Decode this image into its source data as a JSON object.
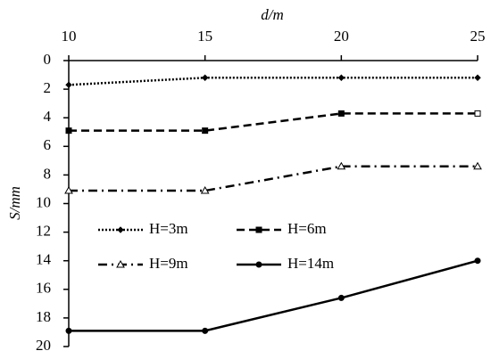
{
  "chart_data": {
    "type": "line",
    "x_label": "d/m",
    "y_label": "S/mm",
    "x": [
      10,
      15,
      20,
      25
    ],
    "series": [
      {
        "name": "H=3m",
        "color": "#000000",
        "line_style": "dotted",
        "marker": "diamond",
        "values": [
          1.7,
          1.2,
          1.2,
          1.2
        ]
      },
      {
        "name": "H=6m",
        "color": "#000000",
        "line_style": "dashed",
        "marker": "square",
        "values": [
          4.9,
          4.9,
          3.7,
          3.7
        ]
      },
      {
        "name": "H=9m",
        "color": "#000000",
        "line_style": "dashdot",
        "marker": "triangle",
        "values": [
          9.1,
          9.1,
          7.4,
          7.4
        ]
      },
      {
        "name": "H=14m",
        "color": "#000000",
        "line_style": "solid",
        "marker": "circle",
        "values": [
          18.9,
          18.9,
          16.6,
          14.0
        ]
      }
    ],
    "xlim": [
      10,
      25
    ],
    "xticks": [
      10,
      15,
      20,
      25
    ],
    "x_axis_position": "top",
    "ylim": [
      0,
      20
    ],
    "yticks": [
      0,
      2,
      4,
      6,
      8,
      10,
      12,
      14,
      16,
      18,
      20
    ],
    "y_inverted": true,
    "grid": false,
    "legend_position": "center-left"
  }
}
